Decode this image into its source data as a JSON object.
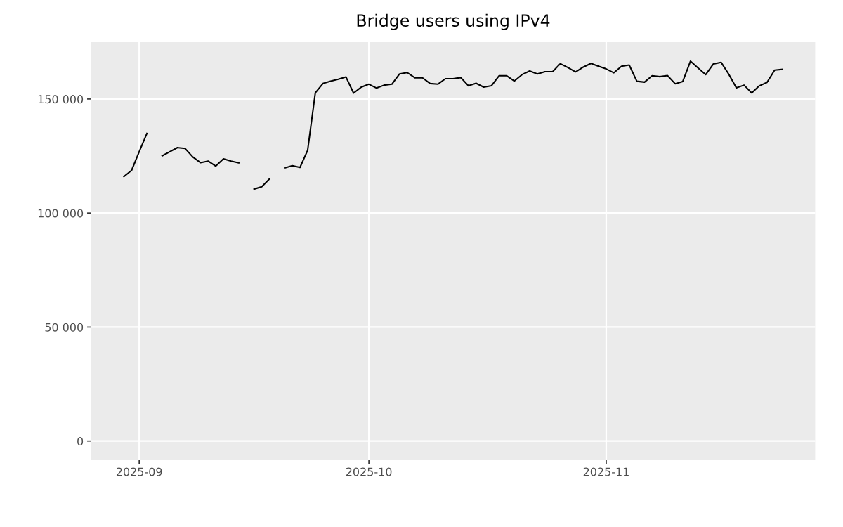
{
  "chart_data": {
    "type": "line",
    "title": "Bridge users using IPv4",
    "x": [
      "2025-08-30",
      "2025-08-31",
      "2025-09-01",
      "2025-09-02",
      "2025-09-03",
      "2025-09-04",
      "2025-09-05",
      "2025-09-06",
      "2025-09-07",
      "2025-09-08",
      "2025-09-09",
      "2025-09-10",
      "2025-09-11",
      "2025-09-12",
      "2025-09-13",
      "2025-09-14",
      "2025-09-15",
      "2025-09-16",
      "2025-09-17",
      "2025-09-18",
      "2025-09-19",
      "2025-09-20",
      "2025-09-21",
      "2025-09-22",
      "2025-09-23",
      "2025-09-24",
      "2025-09-25",
      "2025-09-26",
      "2025-09-27",
      "2025-09-28",
      "2025-09-29",
      "2025-09-30",
      "2025-10-01",
      "2025-10-02",
      "2025-10-03",
      "2025-10-04",
      "2025-10-05",
      "2025-10-06",
      "2025-10-07",
      "2025-10-08",
      "2025-10-09",
      "2025-10-10",
      "2025-10-11",
      "2025-10-12",
      "2025-10-13",
      "2025-10-14",
      "2025-10-15",
      "2025-10-16",
      "2025-10-17",
      "2025-10-18",
      "2025-10-19",
      "2025-10-20",
      "2025-10-21",
      "2025-10-22",
      "2025-10-23",
      "2025-10-24",
      "2025-10-25",
      "2025-10-26",
      "2025-10-27",
      "2025-10-28",
      "2025-10-29",
      "2025-10-30",
      "2025-10-31",
      "2025-11-01",
      "2025-11-02",
      "2025-11-03",
      "2025-11-04",
      "2025-11-05",
      "2025-11-06",
      "2025-11-07",
      "2025-11-08",
      "2025-11-09",
      "2025-11-10",
      "2025-11-11",
      "2025-11-12",
      "2025-11-13",
      "2025-11-14",
      "2025-11-15",
      "2025-11-16",
      "2025-11-17",
      "2025-11-18",
      "2025-11-19",
      "2025-11-20",
      "2025-11-21",
      "2025-11-22",
      "2025-11-23",
      "2025-11-24"
    ],
    "series": [
      {
        "color": "#000000",
        "values": [
          116000,
          118700,
          126900,
          134900,
          null,
          125100,
          126900,
          128700,
          128300,
          124600,
          122100,
          122800,
          120600,
          123800,
          122800,
          122000,
          null,
          110500,
          111500,
          114900,
          null,
          119800,
          120800,
          120000,
          127500,
          152700,
          156800,
          157800,
          158700,
          159700,
          152600,
          155200,
          156500,
          154800,
          156100,
          156500,
          161000,
          161600,
          159300,
          159300,
          156800,
          156500,
          158900,
          158900,
          159400,
          155800,
          156900,
          155200,
          155800,
          160200,
          160200,
          157900,
          160700,
          162300,
          161000,
          162000,
          162000,
          165500,
          163800,
          161900,
          164000,
          165600,
          164400,
          163200,
          161500,
          164400,
          164900,
          157800,
          157400,
          160200,
          159800,
          160300,
          156700,
          157700,
          166600,
          163600,
          160700,
          165400,
          166100,
          160900,
          154900,
          156100,
          152700,
          155800,
          157300,
          162700,
          163000
        ]
      }
    ],
    "xlim": [
      "2025-08-25T17:00",
      "2025-11-28T07:00"
    ],
    "xticks": [
      {
        "value": "2025-09-01",
        "label": "2025-09"
      },
      {
        "value": "2025-10-01",
        "label": "2025-10"
      },
      {
        "value": "2025-11-01",
        "label": "2025-11"
      }
    ],
    "ylim": [
      -8330,
      174930
    ],
    "yticks": [
      0,
      {
        "value": 50000,
        "label": "50 000"
      },
      {
        "value": 100000,
        "label": "100 000"
      },
      {
        "value": 150000,
        "label": "150 000"
      }
    ],
    "grid": true,
    "marker": "none",
    "line_style": "solid"
  }
}
